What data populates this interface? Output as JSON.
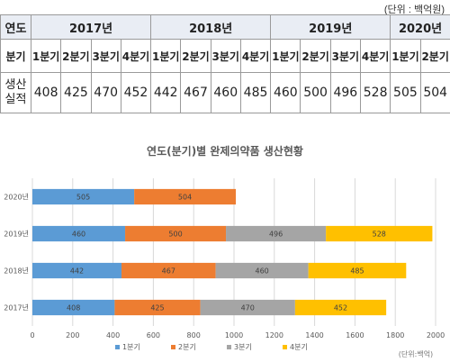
{
  "unit_note": "(단위 : 백억원)",
  "table": {
    "year_header": "연도",
    "quarter_header": "분기",
    "value_header": "생산\n실적",
    "years": [
      {
        "label": "2017년",
        "quarters": [
          "1분기",
          "2분기",
          "3분기",
          "4분기"
        ],
        "values": [
          "408",
          "425",
          "470",
          "452"
        ]
      },
      {
        "label": "2018년",
        "quarters": [
          "1분기",
          "2분기",
          "3분기",
          "4분기"
        ],
        "values": [
          "442",
          "467",
          "460",
          "485"
        ]
      },
      {
        "label": "2019년",
        "quarters": [
          "1분기",
          "2분기",
          "3분기",
          "4분기"
        ],
        "values": [
          "460",
          "500",
          "496",
          "528"
        ]
      },
      {
        "label": "2020년",
        "quarters": [
          "1분기",
          "2분기"
        ],
        "values": [
          "505",
          "504"
        ]
      }
    ]
  },
  "chart_data": {
    "type": "bar",
    "orientation": "horizontal",
    "stacked": true,
    "title": "연도(분기)별 완제의약품 생산현황",
    "unit_label": "(단위:백억)",
    "categories": [
      "2020년",
      "2019년",
      "2018년",
      "2017년"
    ],
    "series": [
      {
        "name": "1분기",
        "color": "#5b9bd5",
        "values": [
          505,
          460,
          442,
          408
        ]
      },
      {
        "name": "2분기",
        "color": "#ed7d31",
        "values": [
          504,
          500,
          467,
          425
        ]
      },
      {
        "name": "3분기",
        "color": "#a5a5a5",
        "values": [
          null,
          496,
          460,
          470
        ]
      },
      {
        "name": "4분기",
        "color": "#ffc000",
        "values": [
          null,
          528,
          485,
          452
        ]
      }
    ],
    "xlim": [
      0,
      2000
    ],
    "xticks": [
      0,
      200,
      400,
      600,
      800,
      1000,
      1200,
      1400,
      1600,
      1800,
      2000
    ],
    "grid": true,
    "legend": "bottom"
  }
}
